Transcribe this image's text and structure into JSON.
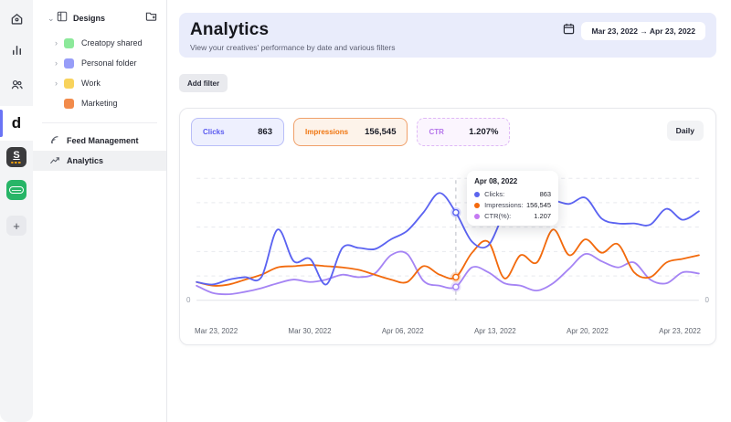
{
  "rail": {
    "brand_letter": "d",
    "add_label": "+"
  },
  "sidebar": {
    "designs_label": "Designs",
    "folders": [
      {
        "name": "Creatopy shared",
        "color": "#8ce99a"
      },
      {
        "name": "Personal folder",
        "color": "#979df8"
      },
      {
        "name": "Work",
        "color": "#f8d35c"
      },
      {
        "name": "Marketing",
        "color": "#f28b4b"
      }
    ],
    "items": [
      {
        "label": "Feed Management"
      },
      {
        "label": "Analytics"
      }
    ]
  },
  "header": {
    "title": "Analytics",
    "subtitle": "View your creatives' performance by date and various filters",
    "date_range": "Mar 23, 2022 → Apr 23, 2022"
  },
  "toolbar": {
    "add_filter_label": "Add filter"
  },
  "stats": [
    {
      "label": "Clicks",
      "value": "863",
      "color": "#5b5bf0",
      "border": "#b9bef8",
      "bg": "#eef0fe",
      "border_style": "solid"
    },
    {
      "label": "Impressions",
      "value": "156,545",
      "color": "#f0750f",
      "border": "#f0a06a",
      "bg": "#fdf3ea",
      "border_style": "solid"
    },
    {
      "label": "CTR",
      "value": "1.207%",
      "color": "#b473ea",
      "border": "#dfb8f6",
      "bg": "#fbf5fe",
      "border_style": "dashed"
    }
  ],
  "granularity_label": "Daily",
  "tooltip": {
    "title": "Apr 08, 2022",
    "rows": [
      {
        "label": "Clicks:",
        "value": "863",
        "color": "#5b64ee"
      },
      {
        "label": "Impressions:",
        "value": "156,545",
        "color": "#f4690c"
      },
      {
        "label": "CTR(%):",
        "value": "1.207",
        "color": "#c479f2"
      }
    ]
  },
  "chart_data": {
    "type": "line",
    "x_tick_labels": [
      "Mar 23, 2022",
      "Mar 30, 2022",
      "Apr 06, 2022",
      "Apr 13, 2022",
      "Apr 20, 2022",
      "Apr 23, 2022"
    ],
    "x_start": "Mar 23, 2022",
    "x_end": "Apr 23, 2022",
    "points_per_series": 32,
    "y_axis_labels": {
      "left": "0",
      "right": "0"
    },
    "grid": "horizontal-dashed",
    "legend_position": "chips-top",
    "selected_index": 16,
    "selected_date": "Apr 08, 2022",
    "selected_values": {
      "clicks": 863,
      "impressions": 156545,
      "ctr_pct": 1.207
    },
    "series": [
      {
        "name": "CTR",
        "color": "#a584f4",
        "values_relative_pct": [
          12,
          6,
          5,
          7,
          10,
          14,
          17,
          15,
          17,
          21,
          19,
          22,
          37,
          38,
          16,
          12,
          11,
          27,
          23,
          14,
          12,
          8,
          14,
          26,
          38,
          32,
          27,
          31,
          17,
          14,
          23,
          22
        ]
      },
      {
        "name": "Impressions",
        "color": "#f26a0d",
        "values_relative_pct": [
          15,
          12,
          13,
          17,
          21,
          27,
          28,
          29,
          28,
          27,
          25,
          21,
          17,
          15,
          28,
          21,
          19,
          39,
          48,
          18,
          37,
          31,
          58,
          37,
          50,
          39,
          46,
          23,
          19,
          31,
          34,
          37
        ]
      },
      {
        "name": "Clicks",
        "color": "#5b63f1",
        "values_relative_pct": [
          15,
          13,
          17,
          19,
          19,
          58,
          32,
          34,
          13,
          43,
          43,
          42,
          50,
          57,
          72,
          88,
          72,
          48,
          45,
          71,
          81,
          82,
          82,
          79,
          84,
          67,
          63,
          63,
          62,
          75,
          66,
          73
        ]
      }
    ]
  }
}
